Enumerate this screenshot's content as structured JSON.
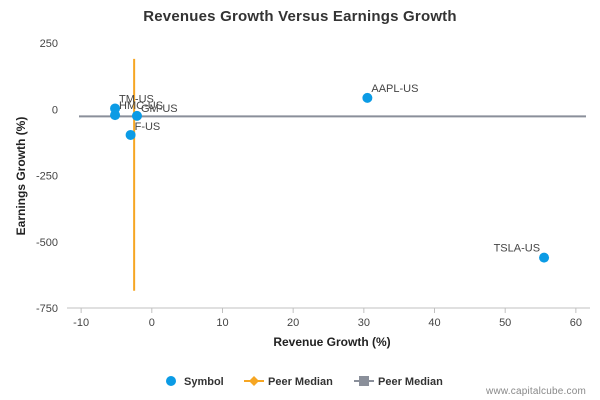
{
  "chart_data": {
    "type": "scatter",
    "title": "Revenues Growth Versus Earnings Growth",
    "xlabel": "Revenue Growth (%)",
    "ylabel": "Earnings Growth (%)",
    "xlim": [
      -12,
      62
    ],
    "ylim": [
      -750,
      250
    ],
    "xticks": [
      -10,
      0,
      10,
      20,
      30,
      40,
      50,
      60
    ],
    "yticks": [
      250,
      0,
      -250,
      -500,
      -750
    ],
    "points": [
      {
        "label": "AAPL-US",
        "x": 30.5,
        "y": 43
      },
      {
        "label": "TSLA-US",
        "x": 55.5,
        "y": -560
      },
      {
        "label": "TM-US",
        "x": -5.2,
        "y": 3
      },
      {
        "label": "HMC-US",
        "x": -5.2,
        "y": -22
      },
      {
        "label": "GM-US",
        "x": -2.1,
        "y": -25
      },
      {
        "label": "F-US",
        "x": -3.0,
        "y": -97
      }
    ],
    "peer_median_x": -2.5,
    "peer_median_y": -27,
    "vertical_line_y_range": [
      190,
      -685
    ],
    "legend": [
      "Symbol",
      "Peer Median",
      "Peer Median"
    ],
    "legend_position": "bottom",
    "colors": {
      "points": "#0b9be5",
      "median_x": "#f6a623",
      "median_y": "#8a8f9a",
      "grid": "#cccccc"
    }
  },
  "footer": {
    "credit": "www.capitalcube.com"
  }
}
